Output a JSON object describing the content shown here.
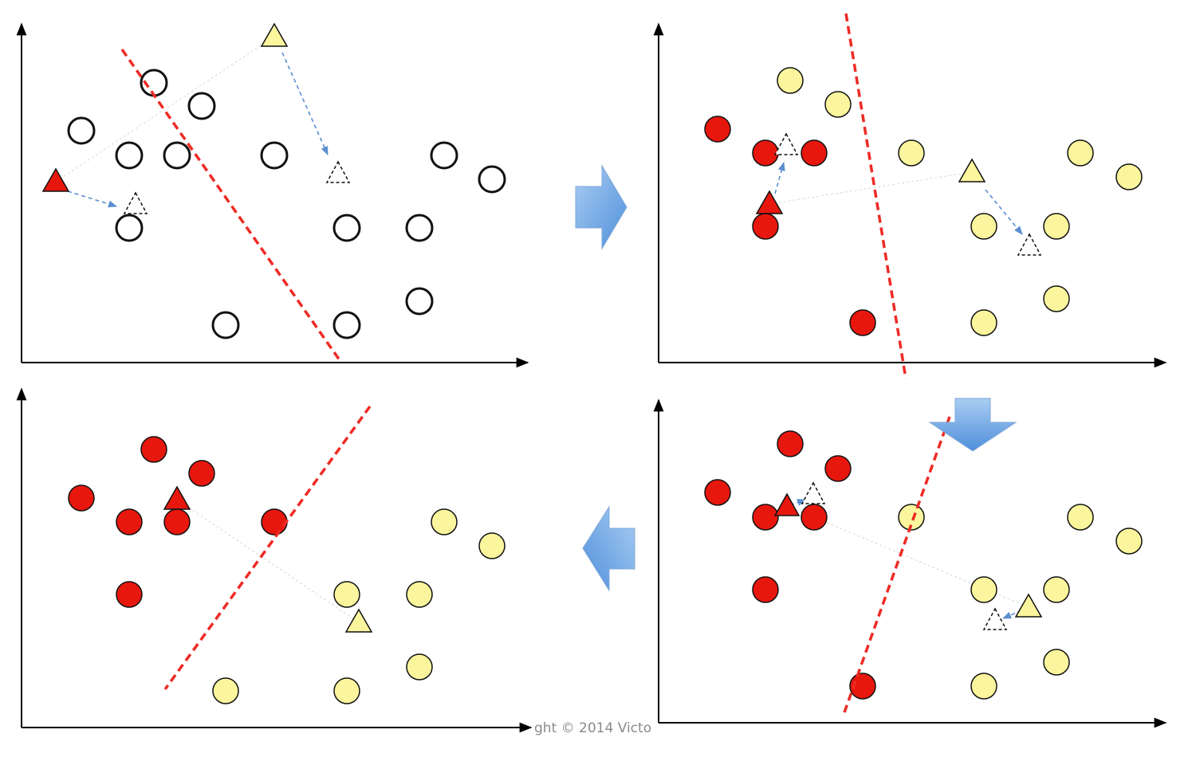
{
  "copyright": "ght © 2014 Victo",
  "colors": {
    "red": "#e8170e",
    "yellow": "#fbf69e",
    "hollow": "#ffffff",
    "stroke": "#111111",
    "boundary": "#ee2b25",
    "guide_arrow": "#5b8fd0",
    "flow_arrow_light": "#a9cdf2",
    "flow_arrow_dark": "#4f8fdb"
  },
  "flow": [
    "right-arrow",
    "down-arrow",
    "left-arrow"
  ],
  "panels": [
    {
      "name": "step-1-initial",
      "red_points": [],
      "yellow_points": [],
      "hollow_points": [
        [
          102,
          164
        ],
        [
          193,
          104
        ],
        [
          253,
          133
        ],
        [
          162,
          195
        ],
        [
          222,
          195
        ],
        [
          344,
          195
        ],
        [
          557,
          195
        ],
        [
          617,
          225
        ],
        [
          162,
          286
        ],
        [
          435,
          286
        ],
        [
          526,
          286
        ],
        [
          526,
          378
        ],
        [
          283,
          408
        ],
        [
          435,
          408
        ]
      ],
      "red_centroid": [
        70,
        228
      ],
      "yellow_centroid": [
        344,
        46
      ],
      "boundary": [
        [
          153,
          62
        ],
        [
          426,
          452
        ]
      ]
    },
    {
      "name": "step-2-assigned",
      "red_points": [
        [
          900,
          162
        ],
        [
          960,
          192
        ],
        [
          1021,
          192
        ],
        [
          960,
          284
        ],
        [
          1082,
          405
        ]
      ],
      "yellow_points": [
        [
          991,
          101
        ],
        [
          1051,
          131
        ],
        [
          1143,
          192
        ],
        [
          1355,
          192
        ],
        [
          1416,
          222
        ],
        [
          1234,
          284
        ],
        [
          1325,
          284
        ],
        [
          1325,
          375
        ],
        [
          1234,
          405
        ]
      ],
      "hollow_points": [],
      "red_centroid": [
        965,
        256
      ],
      "yellow_centroid": [
        1219,
        216
      ],
      "boundary": [
        [
          1061,
          17
        ],
        [
          1136,
          475
        ]
      ]
    },
    {
      "name": "step-3-reassigned",
      "red_points": [
        [
          991,
          557
        ],
        [
          1051,
          588
        ],
        [
          900,
          618
        ],
        [
          960,
          649
        ],
        [
          1021,
          649
        ],
        [
          960,
          740
        ],
        [
          1082,
          861
        ]
      ],
      "yellow_points": [
        [
          1143,
          649
        ],
        [
          1355,
          649
        ],
        [
          1416,
          679
        ],
        [
          1234,
          740
        ],
        [
          1325,
          740
        ],
        [
          1325,
          831
        ],
        [
          1234,
          861
        ]
      ],
      "hollow_points": [],
      "red_centroid": [
        987,
        635
      ],
      "yellow_centroid": [
        1290,
        762
      ],
      "boundary": [
        [
          1191,
          523
        ],
        [
          1059,
          894
        ]
      ]
    },
    {
      "name": "step-4-converged",
      "red_points": [
        [
          193,
          564
        ],
        [
          253,
          594
        ],
        [
          102,
          625
        ],
        [
          162,
          655
        ],
        [
          222,
          655
        ],
        [
          344,
          655
        ],
        [
          162,
          746
        ]
      ],
      "yellow_points": [
        [
          557,
          655
        ],
        [
          617,
          685
        ],
        [
          435,
          746
        ],
        [
          526,
          746
        ],
        [
          526,
          837
        ],
        [
          283,
          867
        ],
        [
          435,
          867
        ]
      ],
      "hollow_points": [],
      "red_centroid": [
        222,
        627
      ],
      "yellow_centroid": [
        450,
        781
      ],
      "boundary": [
        [
          464,
          510
        ],
        [
          207,
          865
        ]
      ]
    }
  ]
}
